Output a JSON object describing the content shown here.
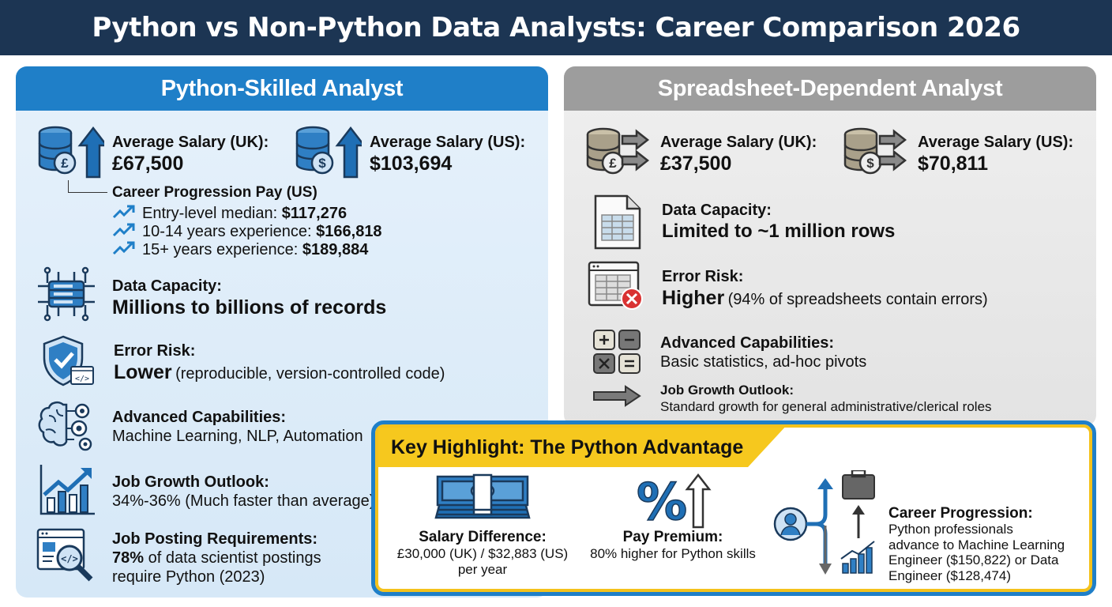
{
  "title": "Python vs Non-Python Data Analysts: Career Comparison 2026",
  "colors": {
    "navy": "#1c3553",
    "python_blue": "#1f7fc8",
    "spreadsheet_gray": "#9d9d9d",
    "highlight_yellow": "#f6c81e"
  },
  "python": {
    "heading": "Python-Skilled Analyst",
    "salary_uk": {
      "label": "Average Salary (UK):",
      "value": "£67,500",
      "icon": "pound-database-up-icon"
    },
    "salary_us": {
      "label": "Average Salary (US):",
      "value": "$103,694",
      "icon": "dollar-database-up-icon"
    },
    "progression": {
      "title": "Career Progression Pay (US)",
      "items": [
        {
          "label": "Entry-level median:",
          "value": "$117,276"
        },
        {
          "label": "10-14 years experience:",
          "value": "$166,818"
        },
        {
          "label": "15+ years experience:",
          "value": "$189,884"
        }
      ]
    },
    "capacity": {
      "label": "Data Capacity:",
      "value": "Millions to billions of records",
      "icon": "server-network-icon"
    },
    "error": {
      "label": "Error Risk:",
      "value": "Lower",
      "note": "(reproducible, version-controlled code)",
      "icon": "shield-check-code-icon"
    },
    "advanced": {
      "label": "Advanced Capabilities:",
      "value": "Machine Learning, NLP, Automation",
      "icon": "brain-gears-icon"
    },
    "growth": {
      "label": "Job Growth Outlook:",
      "value": "34%-36% (Much faster than average)",
      "icon": "bar-chart-up-icon"
    },
    "postings": {
      "label": "Job Posting Requirements:",
      "value_bold": "78%",
      "value_line1": "of data scientist postings",
      "value_line2": "require Python (2023)",
      "icon": "code-magnifier-icon"
    }
  },
  "spreadsheet": {
    "heading": "Spreadsheet-Dependent Analyst",
    "salary_uk": {
      "label": "Average Salary (UK):",
      "value": "£37,500",
      "icon": "pound-database-flat-icon"
    },
    "salary_us": {
      "label": "Average Salary (US):",
      "value": "$70,811",
      "icon": "dollar-database-flat-icon"
    },
    "capacity": {
      "label": "Data Capacity:",
      "value": "Limited to ~1 million rows",
      "icon": "spreadsheet-file-icon"
    },
    "error": {
      "label": "Error Risk:",
      "value": "Higher",
      "note": "(94% of spreadsheets contain errors)",
      "icon": "spreadsheet-error-icon"
    },
    "advanced": {
      "label": "Advanced Capabilities:",
      "value": "Basic statistics, ad-hoc pivots",
      "icon": "calculator-icon"
    },
    "growth": {
      "label": "Job Growth Outlook:",
      "value": "Standard growth for general administrative/clerical roles",
      "icon": "flat-arrow-icon"
    }
  },
  "highlight": {
    "heading": "Key Highlight: The Python Advantage",
    "salary_diff": {
      "label": "Salary Difference:",
      "line1": "£30,000 (UK) / $32,883 (US)",
      "line2": "per year",
      "icon": "money-stack-icon"
    },
    "premium": {
      "label": "Pay Premium:",
      "value": "80% higher for Python skills",
      "icon": "percent-up-icon"
    },
    "career": {
      "label": "Career Progression:",
      "line1": "Python professionals",
      "line2": "advance to Machine Learning",
      "line3": "Engineer ($150,822) or Data",
      "line4": "Engineer ($128,474)",
      "icon": "career-path-icon"
    }
  }
}
